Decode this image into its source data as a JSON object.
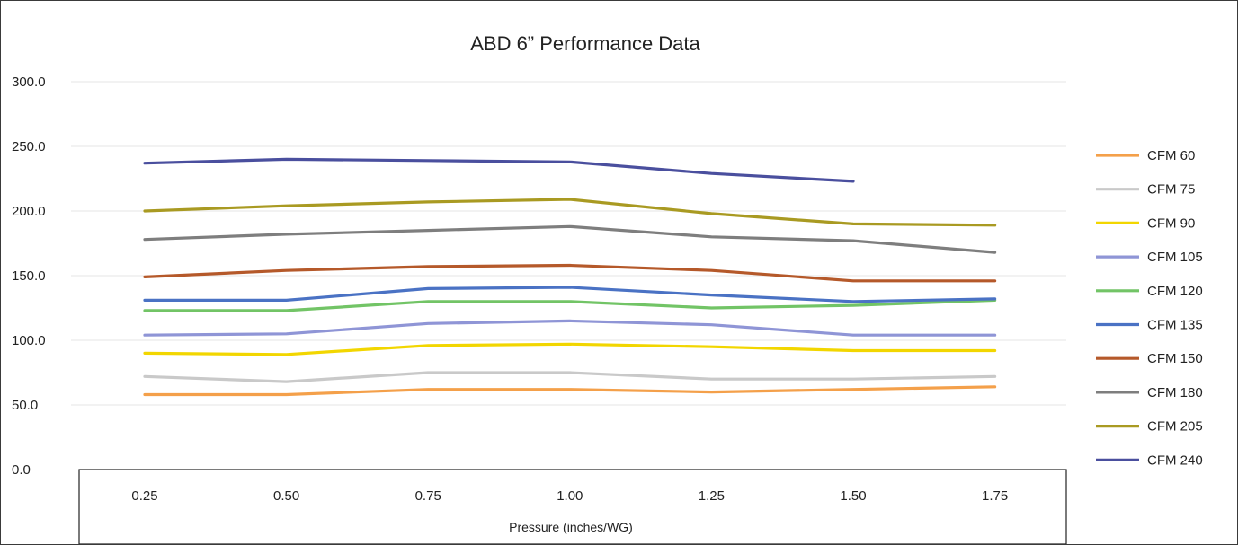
{
  "chart_data": {
    "type": "line",
    "title": "ABD 6” Performance Data",
    "xlabel": "Pressure (inches/WG)",
    "ylabel": "",
    "categories": [
      "0.25",
      "0.50",
      "0.75",
      "1.00",
      "1.25",
      "1.50",
      "1.75"
    ],
    "y_ticks": [
      "0.0",
      "50.0",
      "100.0",
      "150.0",
      "200.0",
      "250.0",
      "300.0"
    ],
    "ylim": [
      0,
      300
    ],
    "grid": "horizontal",
    "legend_position": "right",
    "series": [
      {
        "name": "CFM 60",
        "color": "#f4a04a",
        "values": [
          58,
          58,
          62,
          62,
          60,
          62,
          64
        ]
      },
      {
        "name": "CFM 75",
        "color": "#c9c9c9",
        "values": [
          72,
          68,
          75,
          75,
          70,
          70,
          72
        ]
      },
      {
        "name": "CFM 90",
        "color": "#f2d600",
        "values": [
          90,
          89,
          96,
          97,
          95,
          92,
          92
        ]
      },
      {
        "name": "CFM 105",
        "color": "#8f95d6",
        "values": [
          104,
          105,
          113,
          115,
          112,
          104,
          104
        ]
      },
      {
        "name": "CFM 120",
        "color": "#72c466",
        "values": [
          123,
          123,
          130,
          130,
          125,
          127,
          131
        ]
      },
      {
        "name": "CFM 135",
        "color": "#4a72c4",
        "values": [
          131,
          131,
          140,
          141,
          135,
          130,
          132
        ]
      },
      {
        "name": "CFM 150",
        "color": "#b5592a",
        "values": [
          149,
          154,
          157,
          158,
          154,
          146,
          146
        ]
      },
      {
        "name": "CFM 180",
        "color": "#7e7e7e",
        "values": [
          178,
          182,
          185,
          188,
          180,
          177,
          168
        ]
      },
      {
        "name": "CFM 205",
        "color": "#a99a22",
        "values": [
          200,
          204,
          207,
          209,
          198,
          190,
          189
        ]
      },
      {
        "name": "CFM 240",
        "color": "#4a4f9e",
        "values": [
          237,
          240,
          239,
          238,
          229,
          223,
          null
        ]
      }
    ]
  }
}
